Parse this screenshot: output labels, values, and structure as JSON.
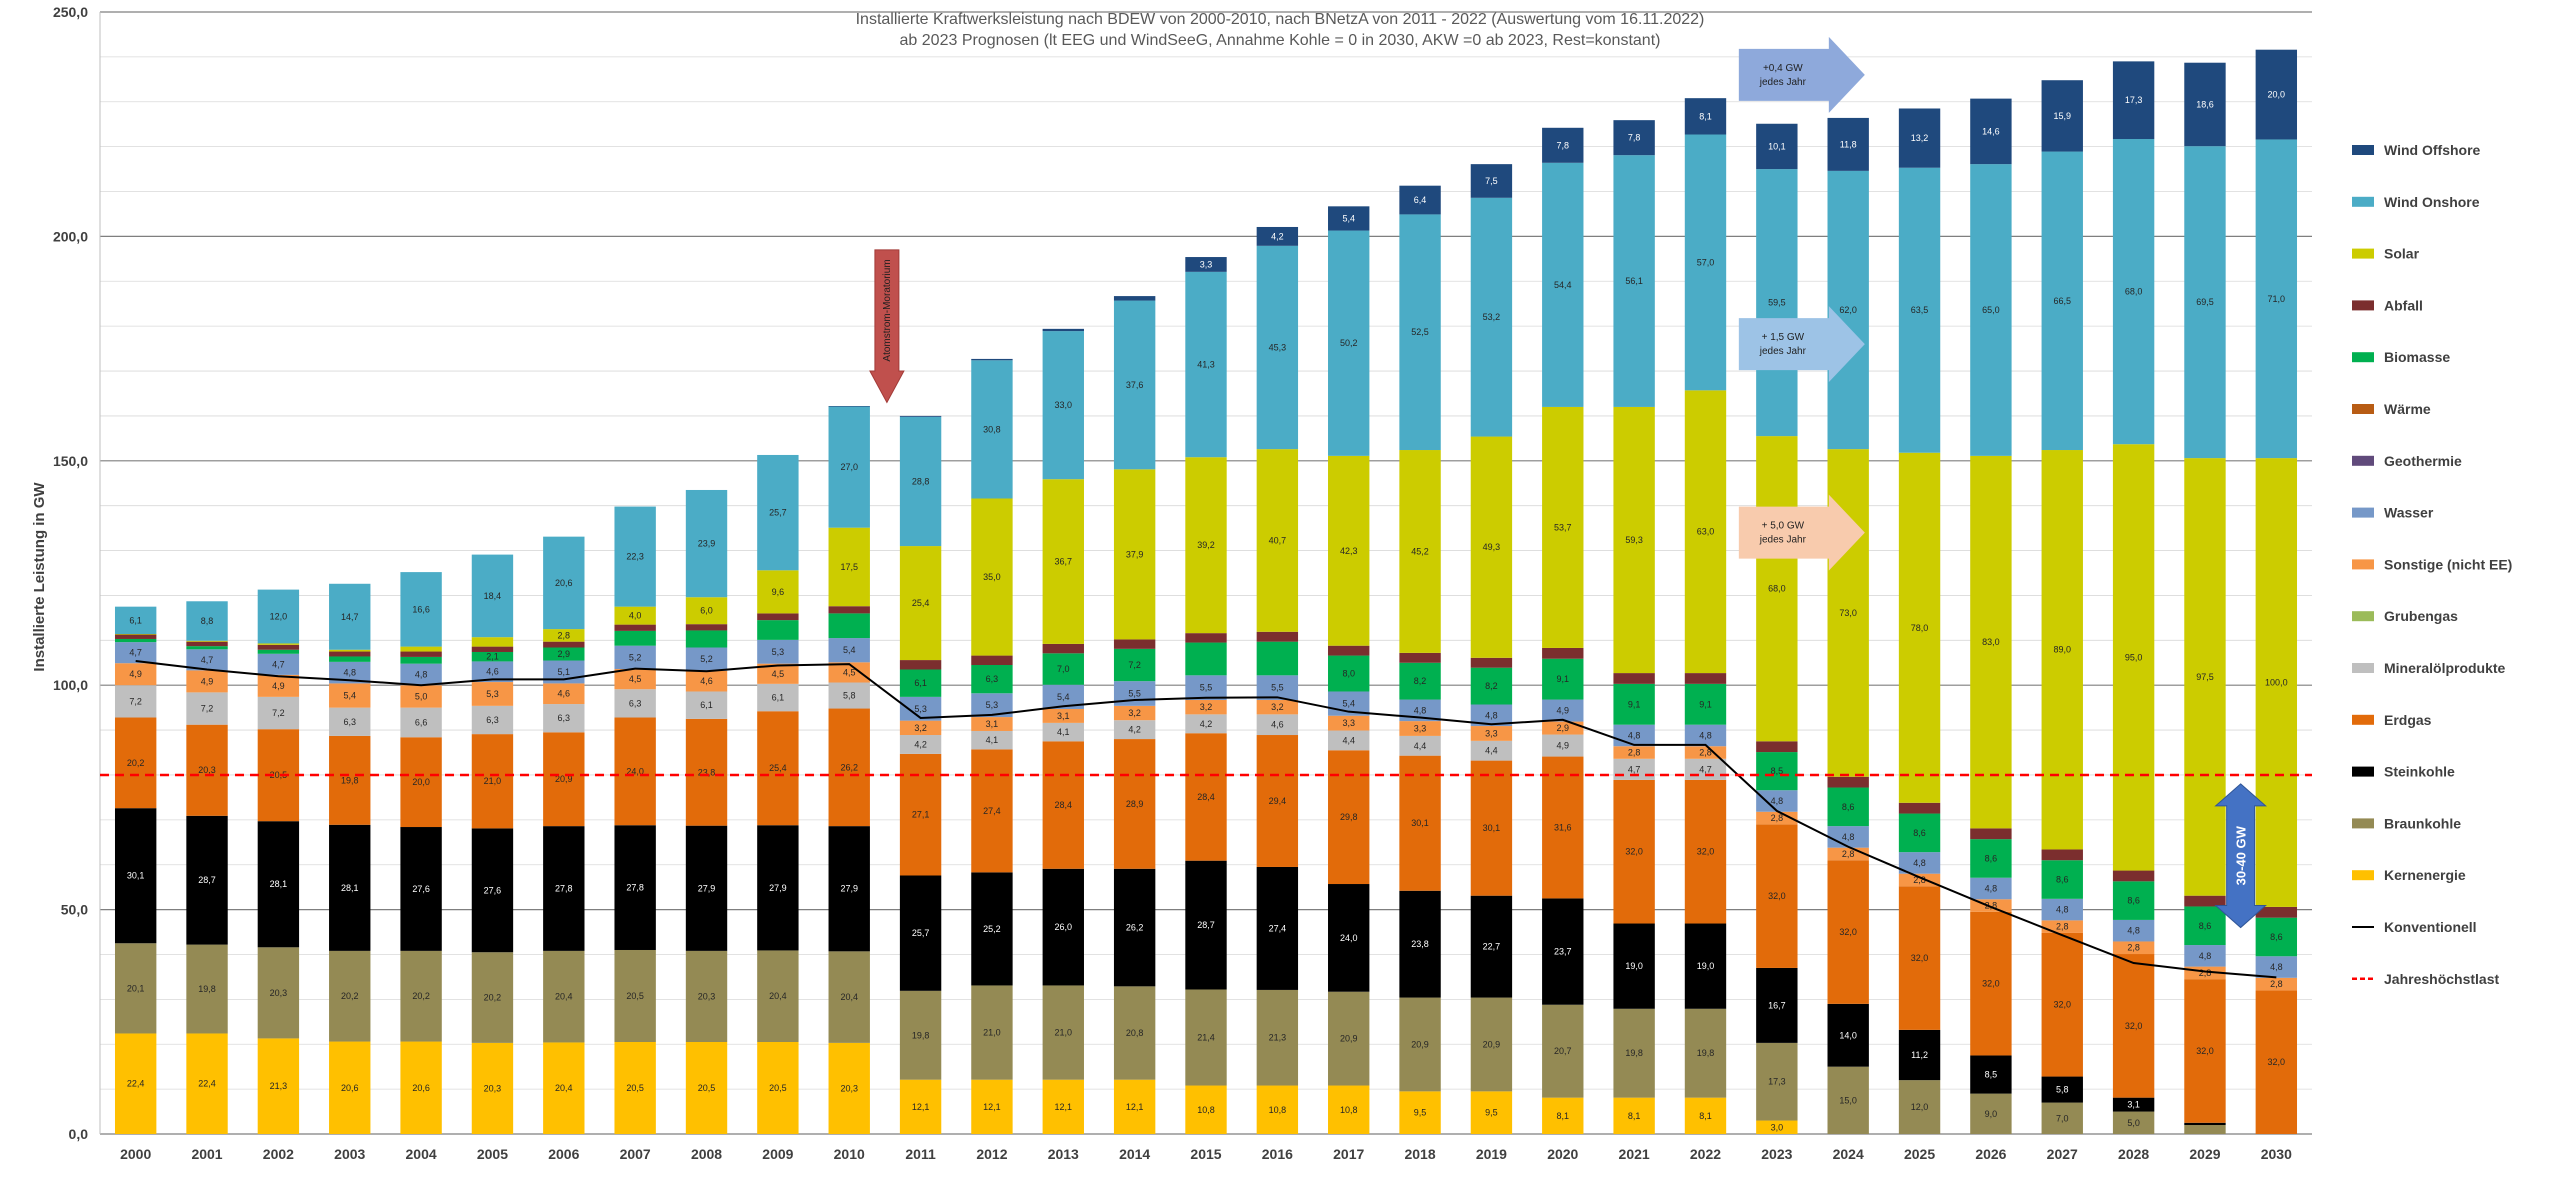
{
  "chart_data": {
    "type": "bar",
    "stacked": true,
    "title": "Installierte Kraftwerksleistung nach BDEW von 2000-2010, nach BNetzA von 2011 - 2022 (Auswertung vom 16.11.2022)",
    "subtitle": "ab 2023 Prognosen (lt EEG und WindSeeG, Annahme Kohle = 0 in 2030, AKW =0 ab 2023, Rest=konstant)",
    "ylabel": "Installierte Leistung in GW",
    "ylim": [
      0,
      250
    ],
    "yticks": [
      "0,0",
      "50,0",
      "100,0",
      "150,0",
      "200,0",
      "250,0"
    ],
    "grid": true,
    "legend_position": "right",
    "categories": [
      "2000",
      "2001",
      "2002",
      "2003",
      "2004",
      "2005",
      "2006",
      "2007",
      "2008",
      "2009",
      "2010",
      "2011",
      "2012",
      "2013",
      "2014",
      "2015",
      "2016",
      "2017",
      "2018",
      "2019",
      "2020",
      "2021",
      "2022",
      "2023",
      "2024",
      "2025",
      "2026",
      "2027",
      "2028",
      "2029",
      "2030"
    ],
    "series": [
      {
        "name": "Kernenergie",
        "color": "#FFC000",
        "values": [
          22.4,
          22.4,
          21.3,
          20.6,
          20.6,
          20.3,
          20.4,
          20.5,
          20.5,
          20.5,
          20.3,
          12.1,
          12.1,
          12.1,
          12.1,
          10.8,
          10.8,
          10.8,
          9.5,
          9.5,
          8.1,
          8.1,
          8.1,
          3.0,
          0,
          0,
          0,
          0,
          0,
          0,
          0
        ],
        "labels": [
          "22,4",
          "22,4",
          "21,3",
          "20,6",
          "20,6",
          "20,3",
          "20,4",
          "20,5",
          "20,5",
          "20,5",
          "20,3",
          "12,1",
          "12,1",
          "12,1",
          "12,1",
          "10,8",
          "10,8",
          "10,8",
          "9,5",
          "9,5",
          "8,1",
          "8,1",
          "8,1",
          "3,0",
          "",
          "",
          "",
          "",
          "",
          "",
          ""
        ]
      },
      {
        "name": "Braunkohle",
        "color": "#948A54",
        "values": [
          20.1,
          19.8,
          20.3,
          20.2,
          20.2,
          20.2,
          20.4,
          20.5,
          20.3,
          20.4,
          20.4,
          19.8,
          21.0,
          21.0,
          20.8,
          21.4,
          21.3,
          20.9,
          20.9,
          20.9,
          20.7,
          19.8,
          19.8,
          17.3,
          15.0,
          12.0,
          9.0,
          7.0,
          5.0,
          2.0,
          0
        ],
        "labels": [
          "20,1",
          "19,8",
          "20,3",
          "20,2",
          "20,2",
          "20,2",
          "20,4",
          "20,5",
          "20,3",
          "20,4",
          "20,4",
          "19,8",
          "21,0",
          "21,0",
          "20,8",
          "21,4",
          "21,3",
          "20,9",
          "20,9",
          "20,9",
          "20,7",
          "19,8",
          "19,8",
          "17,3",
          "15,0",
          "12,0",
          "9,0",
          "7,0",
          "5,0",
          "2,0",
          ""
        ]
      },
      {
        "name": "Steinkohle",
        "color": "#000000",
        "values": [
          30.1,
          28.7,
          28.1,
          28.1,
          27.6,
          27.6,
          27.8,
          27.8,
          27.9,
          27.9,
          27.9,
          25.7,
          25.2,
          26.0,
          26.2,
          28.7,
          27.4,
          24.0,
          23.8,
          22.7,
          23.7,
          19.0,
          19.0,
          16.7,
          14.0,
          11.2,
          8.5,
          5.8,
          3.1,
          0.5,
          0
        ],
        "labels": [
          "30,1",
          "28,7",
          "28,1",
          "28,1",
          "27,6",
          "27,6",
          "27,8",
          "27,8",
          "27,9",
          "27,9",
          "27,9",
          "25,7",
          "25,2",
          "26,0",
          "26,2",
          "28,7",
          "27,4",
          "24,0",
          "23,8",
          "22,7",
          "23,7",
          "19,0",
          "19,0",
          "16,7",
          "14,0",
          "11,2",
          "8,5",
          "5,8",
          "3,1",
          "",
          ""
        ]
      },
      {
        "name": "Erdgas",
        "color": "#E26B0A",
        "values": [
          20.2,
          20.3,
          20.5,
          19.8,
          20.0,
          21.0,
          20.9,
          24.0,
          23.8,
          25.4,
          26.2,
          27.1,
          27.4,
          28.4,
          28.9,
          28.4,
          29.4,
          29.8,
          30.1,
          30.1,
          31.6,
          32.0,
          32.0,
          32.0,
          32.0,
          32.0,
          32.0,
          32.0,
          32.0,
          32.0,
          32.0
        ],
        "labels": [
          "20,2",
          "20,3",
          "20,5",
          "19,8",
          "20,0",
          "21,0",
          "20,9",
          "24,0",
          "23,8",
          "25,4",
          "26,2",
          "27,1",
          "27,4",
          "28,4",
          "28,9",
          "28,4",
          "29,4",
          "29,8",
          "30,1",
          "30,1",
          "31,6",
          "32,0",
          "32,0",
          "32,0",
          "32,0",
          "32,0",
          "32,0",
          "32,0",
          "32,0",
          "32,0",
          "32,0"
        ]
      },
      {
        "name": "Mineralölprodukte",
        "color": "#BFBFBF",
        "values": [
          7.2,
          7.2,
          7.2,
          6.3,
          6.6,
          6.3,
          6.3,
          6.3,
          6.1,
          6.1,
          5.8,
          4.2,
          4.1,
          4.1,
          4.2,
          4.2,
          4.6,
          4.4,
          4.4,
          4.4,
          4.9,
          4.7,
          4.7,
          0,
          0,
          0,
          0,
          0,
          0,
          0,
          0
        ],
        "labels": [
          "7,2",
          "7,2",
          "7,2",
          "6,3",
          "6,6",
          "6,3",
          "6,3",
          "6,3",
          "6,1",
          "6,1",
          "5,8",
          "4,2",
          "4,1",
          "4,1",
          "4,2",
          "4,2",
          "4,6",
          "4,4",
          "4,4",
          "4,4",
          "4,9",
          "4,7",
          "4,7",
          "",
          "",
          "",
          "",
          "",
          "",
          "",
          ""
        ]
      },
      {
        "name": "Grubengas",
        "color": "#9BBB59",
        "values": [
          0,
          0,
          0,
          0,
          0,
          0,
          0,
          0,
          0,
          0,
          0,
          0,
          0,
          0,
          0,
          0,
          0,
          0,
          0,
          0,
          0,
          0,
          0,
          0,
          0,
          0,
          0,
          0,
          0,
          0,
          0
        ],
        "labels": [
          "",
          "",
          "",
          "",
          "",
          "",
          "",
          "",
          "",
          "",
          "",
          "",
          "",
          "",
          "",
          "",
          "",
          "",
          "",
          "",
          "",
          "",
          "",
          "",
          "",
          "",
          "",
          "",
          "",
          "",
          ""
        ]
      },
      {
        "name": "Sonstige (nicht EE)",
        "color": "#F79646",
        "values": [
          4.9,
          4.9,
          4.9,
          5.4,
          5.0,
          5.3,
          4.6,
          4.5,
          4.6,
          4.5,
          4.5,
          3.2,
          3.1,
          3.1,
          3.2,
          3.2,
          3.2,
          3.3,
          3.3,
          3.3,
          2.9,
          2.8,
          2.8,
          2.8,
          2.8,
          2.8,
          2.8,
          2.8,
          2.8,
          2.8,
          2.8
        ],
        "labels": [
          "4,9",
          "4,9",
          "4,9",
          "5,4",
          "5,0",
          "5,3",
          "4,6",
          "4,5",
          "4,6",
          "4,5",
          "4,5",
          "3,2",
          "3,1",
          "3,1",
          "3,2",
          "3,2",
          "3,2",
          "3,3",
          "3,3",
          "3,3",
          "2,9",
          "2,8",
          "2,8",
          "2,8",
          "2,8",
          "2,8",
          "2,8",
          "2,8",
          "2,8",
          "2,8",
          "2,8"
        ]
      },
      {
        "name": "Wasser",
        "color": "#7698C8",
        "values": [
          4.7,
          4.7,
          4.7,
          4.8,
          4.8,
          4.6,
          5.1,
          5.2,
          5.2,
          5.3,
          5.4,
          5.3,
          5.3,
          5.4,
          5.5,
          5.5,
          5.5,
          5.4,
          4.8,
          4.8,
          4.9,
          4.8,
          4.8,
          4.8,
          4.8,
          4.8,
          4.8,
          4.8,
          4.8,
          4.8,
          4.8
        ],
        "labels": [
          "4,7",
          "4,7",
          "4,7",
          "4,8",
          "4,8",
          "4,6",
          "5,1",
          "5,2",
          "5,2",
          "5,3",
          "5,4",
          "5,3",
          "5,3",
          "5,4",
          "5,5",
          "5,5",
          "5,5",
          "5,4",
          "4,8",
          "4,8",
          "4,9",
          "4,8",
          "4,8",
          "4,8",
          "4,8",
          "4,8",
          "4,8",
          "4,8",
          "4,8",
          "4,8",
          "4,8"
        ]
      },
      {
        "name": "Geothermie",
        "color": "#604A7B",
        "values": [
          0,
          0,
          0,
          0,
          0,
          0,
          0,
          0,
          0,
          0,
          0,
          0,
          0,
          0,
          0,
          0,
          0,
          0,
          0,
          0,
          0,
          0,
          0,
          0,
          0,
          0,
          0,
          0,
          0,
          0,
          0
        ],
        "labels": [
          "",
          "",
          "",
          "",
          "",
          "",
          "",
          "",
          "",
          "",
          "",
          "",
          "",
          "",
          "",
          "",
          "",
          "",
          "",
          "",
          "",
          "",
          "",
          "",
          "",
          "",
          "",
          "",
          "",
          "",
          ""
        ]
      },
      {
        "name": "Wärme",
        "color": "#B85C14",
        "values": [
          0,
          0,
          0,
          0,
          0,
          0,
          0,
          0,
          0,
          0,
          0,
          0,
          0,
          0,
          0,
          0,
          0,
          0,
          0,
          0,
          0,
          0,
          0,
          0,
          0,
          0,
          0,
          0,
          0,
          0,
          0
        ],
        "labels": [
          "",
          "",
          "",
          "",
          "",
          "",
          "",
          "",
          "",
          "",
          "",
          "",
          "",
          "",
          "",
          "",
          "",
          "",
          "",
          "",
          "",
          "",
          "",
          "",
          "",
          "",
          "",
          "",
          "",
          "",
          ""
        ]
      },
      {
        "name": "Biomasse",
        "color": "#00B050",
        "values": [
          0.7,
          0.7,
          0.9,
          1.2,
          1.5,
          2.1,
          2.9,
          3.3,
          3.8,
          4.4,
          5.5,
          6.1,
          6.3,
          7.0,
          7.2,
          7.3,
          7.5,
          8.0,
          8.2,
          8.2,
          9.1,
          9.1,
          9.1,
          8.5,
          8.6,
          8.6,
          8.6,
          8.6,
          8.6,
          8.6,
          8.6
        ],
        "labels": [
          "",
          "",
          "",
          "",
          "",
          "2,1",
          "2,9",
          "",
          "",
          "",
          "",
          "6,1",
          "6,3",
          "7,0",
          "7,2",
          "",
          "",
          "8,0",
          "8,2",
          "8,2",
          "9,1",
          "9,1",
          "9,1",
          "8,5",
          "8,6",
          "8,6",
          "8,6",
          "8,6",
          "8,6",
          "8,6",
          "8,6"
        ]
      },
      {
        "name": "Abfall",
        "color": "#7B2E2E",
        "values": [
          1.0,
          1.0,
          1.1,
          1.1,
          1.2,
          1.2,
          1.3,
          1.4,
          1.4,
          1.5,
          1.6,
          2.1,
          2.1,
          2.1,
          2.1,
          2.1,
          2.2,
          2.2,
          2.2,
          2.2,
          2.4,
          2.4,
          2.4,
          2.4,
          2.4,
          2.4,
          2.4,
          2.4,
          2.4,
          2.4,
          2.4
        ],
        "labels": [
          "",
          "",
          "",
          "",
          "",
          "",
          "",
          "",
          "",
          "",
          "",
          "",
          "",
          "",
          "",
          "",
          "",
          "",
          "",
          "",
          "",
          "",
          "",
          "",
          "",
          "",
          "",
          "",
          "",
          "",
          ""
        ]
      },
      {
        "name": "Solar",
        "color": "#CCCC00",
        "values": [
          0.1,
          0.2,
          0.3,
          0.4,
          1.1,
          2.1,
          2.8,
          4.0,
          6.0,
          9.6,
          17.5,
          25.4,
          35.0,
          36.7,
          37.9,
          39.2,
          40.7,
          42.3,
          45.2,
          49.3,
          53.7,
          59.3,
          63.0,
          68.0,
          73.0,
          78.0,
          83.0,
          89.0,
          95.0,
          97.5,
          100.0
        ],
        "labels": [
          "",
          "",
          "",
          "",
          "",
          "",
          "2,8",
          "4,0",
          "6,0",
          "9,6",
          "17,5",
          "25,4",
          "35,0",
          "36,7",
          "37,9",
          "39,2",
          "40,7",
          "42,3",
          "45,2",
          "49,3",
          "53,7",
          "59,3",
          "63,0",
          "68,0",
          "73,0",
          "78,0",
          "83,0",
          "89,0",
          "95,0",
          "97,5",
          "100,0"
        ]
      },
      {
        "name": "Wind Onshore",
        "color": "#4BACC6",
        "values": [
          6.1,
          8.8,
          12.0,
          14.7,
          16.6,
          18.4,
          20.6,
          22.3,
          23.9,
          25.7,
          27.0,
          28.8,
          30.8,
          33.0,
          37.6,
          41.3,
          45.3,
          50.2,
          52.5,
          53.2,
          54.4,
          56.1,
          57.0,
          59.5,
          62.0,
          63.5,
          65.0,
          66.5,
          68.0,
          69.5,
          71.0
        ],
        "labels": [
          "6,1",
          "8,8",
          "12,0",
          "14,7",
          "16,6",
          "18,4",
          "20,6",
          "22,3",
          "23,9",
          "25,7",
          "27,0",
          "28,8",
          "30,8",
          "33,0",
          "37,6",
          "41,3",
          "45,3",
          "50,2",
          "52,5",
          "53,2",
          "54,4",
          "56,1",
          "57,0",
          "59,5",
          "62,0",
          "63,5",
          "65,0",
          "66,5",
          "68,0",
          "69,5",
          "71,0"
        ]
      },
      {
        "name": "Wind Offshore",
        "color": "#1F497D",
        "values": [
          0,
          0,
          0,
          0,
          0,
          0,
          0,
          0,
          0,
          0,
          0.1,
          0.2,
          0.3,
          0.5,
          1.0,
          3.3,
          4.2,
          5.4,
          6.4,
          7.5,
          7.8,
          7.8,
          8.1,
          10.1,
          11.8,
          13.2,
          14.6,
          15.9,
          17.3,
          18.6,
          20.0
        ],
        "labels": [
          "",
          "",
          "",
          "",
          "",
          "",
          "",
          "",
          "",
          "",
          "",
          "",
          "",
          "",
          "",
          "3,3",
          "4,2",
          "5,4",
          "6,4",
          "7,5",
          "7,8",
          "7,8",
          "8,1",
          "10,1",
          "11,8",
          "13,2",
          "14,6",
          "15,9",
          "17,3",
          "18,6",
          "20,0"
        ]
      }
    ],
    "line_series": [
      {
        "name": "Konventionell",
        "color": "#000000",
        "values": [
          105.4,
          103.5,
          102.0,
          101.1,
          100.0,
          101.3,
          101.3,
          103.7,
          103.1,
          104.4,
          104.7,
          92.7,
          93.4,
          95.3,
          96.7,
          97.2,
          97.3,
          94.1,
          92.8,
          91.3,
          92.3,
          86.7,
          86.7,
          72.0,
          64.0,
          57.2,
          50.6,
          44.3,
          38.1,
          36.2,
          34.9
        ]
      },
      {
        "name": "Jahreshöchstlast",
        "color": "#FF0000",
        "dashed": true,
        "values": [
          80,
          80,
          80,
          80,
          80,
          80,
          80,
          80,
          80,
          80,
          80,
          80,
          80,
          80,
          80,
          80,
          80,
          80,
          80,
          80,
          80,
          80,
          80,
          80,
          80,
          80,
          80,
          80,
          80,
          80,
          80
        ]
      }
    ],
    "annotations": [
      {
        "text": "Atomstrom-Moratorium",
        "type": "arrow-down",
        "color": "#C0504D",
        "at": "2011"
      },
      {
        "text": "+0,4 GW jedes Jahr",
        "type": "arrow-right",
        "color": "#8EA9DB",
        "at": "2023"
      },
      {
        "text": "+ 1,5 GW jedes Jahr",
        "type": "arrow-right",
        "color": "#9DC3E6",
        "at": "2023"
      },
      {
        "text": "+ 5,0 GW jedes Jahr",
        "type": "arrow-right",
        "color": "#F8CBAD",
        "at": "2023"
      },
      {
        "text": "30-40 GW",
        "type": "arrow-updown",
        "color": "#4472C4",
        "at": "2029"
      }
    ]
  }
}
